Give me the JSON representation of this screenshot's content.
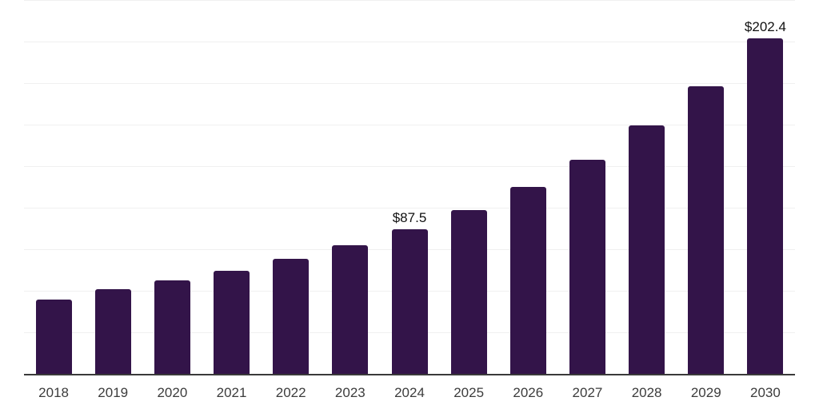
{
  "chart_data": {
    "type": "bar",
    "title": "",
    "xlabel": "",
    "ylabel": "",
    "categories": [
      "2018",
      "2019",
      "2020",
      "2021",
      "2022",
      "2023",
      "2024",
      "2025",
      "2026",
      "2027",
      "2028",
      "2029",
      "2030"
    ],
    "values": [
      45.2,
      51.5,
      56.9,
      62.6,
      69.8,
      78.0,
      87.5,
      99.2,
      113.2,
      129.5,
      149.8,
      173.8,
      202.4
    ],
    "data_labels": [
      "",
      "",
      "",
      "",
      "",
      "",
      "$87.5",
      "",
      "",
      "",
      "",
      "",
      "$202.4"
    ],
    "ylim": [
      0,
      225
    ],
    "grid_step": 25,
    "grid": "horizontal-only",
    "legend": "none",
    "y_tick_labels": "none",
    "colors": {
      "bar": "#331449",
      "axis": "#3a3a3a",
      "gridline": "#f0f0f0",
      "tick_label": "#3c3c3c",
      "data_label": "#111111",
      "background": "#ffffff"
    }
  }
}
